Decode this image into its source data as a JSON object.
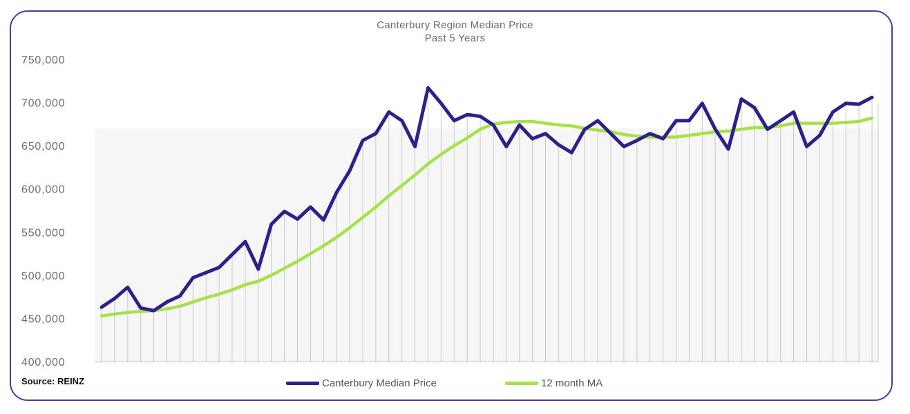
{
  "chart_data": {
    "type": "line",
    "title": "Canterbury Region Median Price",
    "subtitle": "Past 5 Years",
    "xlabel": "",
    "ylabel": "",
    "ylim": [
      400000,
      750000
    ],
    "y_ticks": [
      400000,
      450000,
      500000,
      550000,
      600000,
      650000,
      700000,
      750000
    ],
    "y_tick_labels": [
      "400,000",
      "450,000",
      "500,000",
      "550,000",
      "600,000",
      "650,000",
      "700,000",
      "750,000"
    ],
    "x_labels_shown": false,
    "grid": "vertical lines at each month",
    "legend_position": "bottom-center",
    "source": "Source: REINZ",
    "series": [
      {
        "name": "Canterbury Median Price",
        "color": "#2e1f8a",
        "values": [
          463000,
          473000,
          486000,
          462000,
          459000,
          469000,
          476000,
          497000,
          503000,
          509000,
          524000,
          539000,
          507000,
          559000,
          574000,
          565000,
          579000,
          564000,
          596000,
          621000,
          656000,
          664000,
          689000,
          679000,
          649000,
          717000,
          699000,
          679000,
          686000,
          684000,
          674000,
          649000,
          674000,
          658000,
          664000,
          651000,
          642000,
          669000,
          679000,
          664000,
          649000,
          656000,
          664000,
          658000,
          679000,
          679000,
          699000,
          669000,
          646000,
          704000,
          694000,
          669000,
          679000,
          689000,
          649000,
          662000,
          689000,
          699000,
          698000,
          706000
        ]
      },
      {
        "name": "12 month MA",
        "color": "#a4e24a",
        "values": [
          453000,
          455000,
          457000,
          458000,
          459000,
          461000,
          464000,
          469000,
          474000,
          478000,
          483000,
          489000,
          493000,
          500000,
          508000,
          516000,
          525000,
          534000,
          544000,
          555000,
          567000,
          579000,
          592000,
          604000,
          616000,
          629000,
          640000,
          650000,
          659000,
          669000,
          675000,
          677000,
          678000,
          678000,
          676000,
          674000,
          673000,
          670000,
          668000,
          666000,
          663000,
          661000,
          660000,
          660000,
          660000,
          662000,
          664000,
          666000,
          667000,
          669000,
          671000,
          671000,
          673000,
          676000,
          676000,
          676000,
          676000,
          677000,
          678000,
          682000
        ]
      }
    ]
  }
}
